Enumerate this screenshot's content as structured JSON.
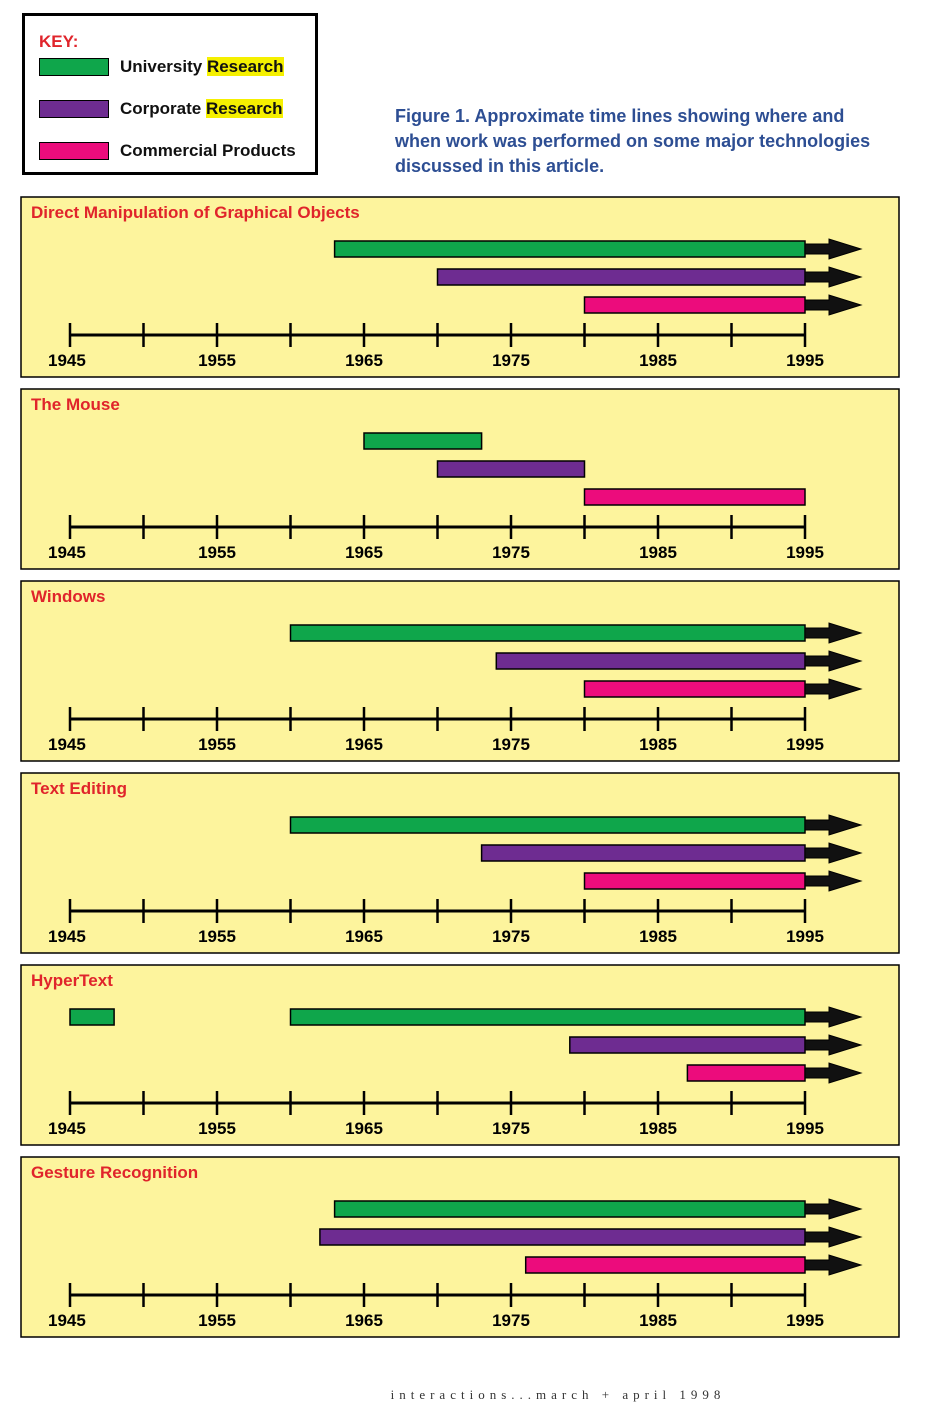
{
  "key": {
    "title": "KEY:",
    "items": [
      {
        "label": "University",
        "highlight": "Research",
        "color": "#0fa64b"
      },
      {
        "label": "Corporate",
        "highlight": "Research",
        "color": "#6e2c91"
      },
      {
        "label": "Commercial Products",
        "highlight": "",
        "color": "#ec0c7c"
      }
    ]
  },
  "caption": "Figure 1. Approximate time lines showing where and when work was performed on some major technologies discussed in this article.",
  "colors": {
    "panel_bg": "#fdf49d",
    "title": "#e0242b",
    "university": "#0fa64b",
    "corporate": "#6e2c91",
    "commercial": "#ec0c7c",
    "highlight": "#f5f000",
    "caption": "#2d4e93"
  },
  "chart_data": [
    {
      "type": "bar",
      "title": "Direct Manipulation of Graphical Objects",
      "xlim": [
        1945,
        1995
      ],
      "tick_labels": [
        "1945",
        "1955",
        "1965",
        "1975",
        "1985",
        "1995"
      ],
      "series": [
        {
          "name": "University Research",
          "segments": [
            [
              1963,
              1995
            ]
          ],
          "continues": true
        },
        {
          "name": "Corporate Research",
          "segments": [
            [
              1970,
              1995
            ]
          ],
          "continues": true
        },
        {
          "name": "Commercial Products",
          "segments": [
            [
              1980,
              1995
            ]
          ],
          "continues": true
        }
      ]
    },
    {
      "type": "bar",
      "title": "The Mouse",
      "xlim": [
        1945,
        1995
      ],
      "tick_labels": [
        "1945",
        "1955",
        "1965",
        "1975",
        "1985",
        "1995"
      ],
      "series": [
        {
          "name": "University Research",
          "segments": [
            [
              1965,
              1973
            ]
          ],
          "continues": false
        },
        {
          "name": "Corporate Research",
          "segments": [
            [
              1970,
              1980
            ]
          ],
          "continues": false
        },
        {
          "name": "Commercial Products",
          "segments": [
            [
              1980,
              1995
            ]
          ],
          "continues": false
        }
      ]
    },
    {
      "type": "bar",
      "title": "Windows",
      "xlim": [
        1945,
        1995
      ],
      "tick_labels": [
        "1945",
        "1955",
        "1965",
        "1975",
        "1985",
        "1995"
      ],
      "series": [
        {
          "name": "University Research",
          "segments": [
            [
              1960,
              1995
            ]
          ],
          "continues": true
        },
        {
          "name": "Corporate Research",
          "segments": [
            [
              1974,
              1995
            ]
          ],
          "continues": true
        },
        {
          "name": "Commercial Products",
          "segments": [
            [
              1980,
              1995
            ]
          ],
          "continues": true
        }
      ]
    },
    {
      "type": "bar",
      "title": "Text Editing",
      "xlim": [
        1945,
        1995
      ],
      "tick_labels": [
        "1945",
        "1955",
        "1965",
        "1975",
        "1985",
        "1995"
      ],
      "series": [
        {
          "name": "University Research",
          "segments": [
            [
              1960,
              1995
            ]
          ],
          "continues": true
        },
        {
          "name": "Corporate Research",
          "segments": [
            [
              1973,
              1995
            ]
          ],
          "continues": true
        },
        {
          "name": "Commercial Products",
          "segments": [
            [
              1980,
              1995
            ]
          ],
          "continues": true
        }
      ]
    },
    {
      "type": "bar",
      "title": "HyperText",
      "xlim": [
        1945,
        1995
      ],
      "tick_labels": [
        "1945",
        "1955",
        "1965",
        "1975",
        "1985",
        "1995"
      ],
      "series": [
        {
          "name": "University Research",
          "segments": [
            [
              1945,
              1948
            ],
            [
              1960,
              1995
            ]
          ],
          "continues": true
        },
        {
          "name": "Corporate Research",
          "segments": [
            [
              1979,
              1995
            ]
          ],
          "continues": true
        },
        {
          "name": "Commercial Products",
          "segments": [
            [
              1987,
              1995
            ]
          ],
          "continues": true
        }
      ]
    },
    {
      "type": "bar",
      "title": "Gesture Recognition",
      "xlim": [
        1945,
        1995
      ],
      "tick_labels": [
        "1945",
        "1955",
        "1965",
        "1975",
        "1985",
        "1995"
      ],
      "series": [
        {
          "name": "University Research",
          "segments": [
            [
              1963,
              1995
            ]
          ],
          "continues": true
        },
        {
          "name": "Corporate Research",
          "segments": [
            [
              1962,
              1995
            ]
          ],
          "continues": true
        },
        {
          "name": "Commercial Products",
          "segments": [
            [
              1976,
              1995
            ]
          ],
          "continues": true
        }
      ]
    }
  ],
  "footer": "interactions...march + april 1998"
}
